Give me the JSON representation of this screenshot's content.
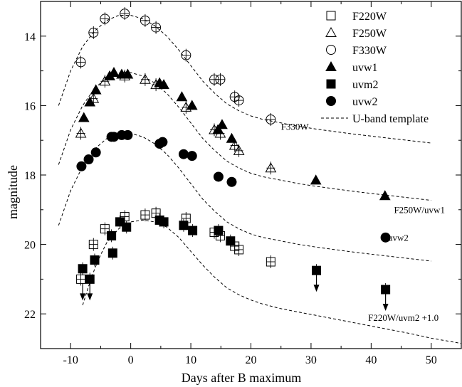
{
  "chart_data": {
    "type": "scatter",
    "xlabel": "Days after B maximum",
    "ylabel": "magnitude",
    "xlim": [
      -15,
      55
    ],
    "ylim": [
      23,
      13
    ],
    "y_inverted": true,
    "xticks": [
      -10,
      0,
      10,
      20,
      30,
      40,
      50
    ],
    "xtick_labels": [
      "-10",
      "0",
      "10",
      "20",
      "30",
      "40",
      "50"
    ],
    "yticks": [
      14,
      16,
      18,
      20,
      22
    ],
    "ytick_labels": [
      "14",
      "16",
      "18",
      "20",
      "22"
    ],
    "legend_position": "top-right",
    "series": [
      {
        "name": "F220W",
        "marker": "square-open",
        "errorbars": true,
        "points": [
          [
            -8.3,
            21.0
          ],
          [
            -6.2,
            20.0
          ],
          [
            -4.3,
            19.55
          ],
          [
            -1.0,
            19.2
          ],
          [
            2.4,
            19.15
          ],
          [
            4.2,
            19.1
          ],
          [
            9.2,
            19.25
          ],
          [
            13.9,
            19.65
          ],
          [
            14.9,
            19.75
          ],
          [
            17.3,
            20.05
          ],
          [
            18.0,
            20.15
          ],
          [
            23.3,
            20.5
          ]
        ]
      },
      {
        "name": "F250W",
        "marker": "triangle-open",
        "errorbars": true,
        "points": [
          [
            -8.3,
            16.8
          ],
          [
            -6.2,
            15.8
          ],
          [
            -4.3,
            15.3
          ],
          [
            -1.0,
            15.15
          ],
          [
            2.4,
            15.25
          ],
          [
            4.2,
            15.4
          ],
          [
            9.2,
            16.05
          ],
          [
            13.9,
            16.7
          ],
          [
            14.9,
            16.8
          ],
          [
            17.3,
            17.15
          ],
          [
            18.0,
            17.3
          ],
          [
            23.3,
            17.8
          ]
        ]
      },
      {
        "name": "F330W",
        "marker": "circle-open",
        "errorbars": true,
        "points": [
          [
            -8.3,
            14.75
          ],
          [
            -6.2,
            13.9
          ],
          [
            -4.3,
            13.5
          ],
          [
            -1.0,
            13.35
          ],
          [
            2.4,
            13.55
          ],
          [
            4.2,
            13.75
          ],
          [
            9.2,
            14.55
          ],
          [
            13.9,
            15.25
          ],
          [
            14.9,
            15.25
          ],
          [
            17.3,
            15.75
          ],
          [
            18.0,
            15.85
          ],
          [
            23.3,
            16.4
          ]
        ]
      },
      {
        "name": "uvw1",
        "marker": "triangle-filled",
        "errorbars": false,
        "points": [
          [
            -7.8,
            16.35
          ],
          [
            -6.8,
            15.9
          ],
          [
            -5.8,
            15.55
          ],
          [
            -3.5,
            15.15
          ],
          [
            -2.8,
            15.05
          ],
          [
            -1.5,
            15.1
          ],
          [
            -0.5,
            15.1
          ],
          [
            4.8,
            15.35
          ],
          [
            5.5,
            15.4
          ],
          [
            8.5,
            15.75
          ],
          [
            10.2,
            16.0
          ],
          [
            14.5,
            16.7
          ],
          [
            15.2,
            16.55
          ],
          [
            16.8,
            16.95
          ],
          [
            30.8,
            18.15
          ],
          [
            42.3,
            18.6
          ]
        ]
      },
      {
        "name": "uvm2",
        "marker": "square-filled",
        "errorbars": true,
        "points": [
          [
            -8.0,
            20.7
          ],
          [
            -6.8,
            21.0
          ],
          [
            -6.0,
            20.45
          ],
          [
            -3.2,
            19.75
          ],
          [
            -3.0,
            20.25
          ],
          [
            -1.8,
            19.35
          ],
          [
            -0.7,
            19.5
          ],
          [
            4.8,
            19.3
          ],
          [
            5.5,
            19.35
          ],
          [
            8.8,
            19.45
          ],
          [
            10.3,
            19.6
          ],
          [
            14.6,
            19.6
          ],
          [
            16.6,
            19.9
          ],
          [
            30.9,
            20.75
          ],
          [
            42.4,
            21.3
          ]
        ],
        "upper_limits": [
          [
            -8.0,
            21.0
          ],
          [
            -6.8,
            21.0
          ],
          [
            30.9,
            20.75
          ],
          [
            42.4,
            21.3
          ]
        ]
      },
      {
        "name": "uvw2",
        "marker": "circle-filled",
        "errorbars": false,
        "points": [
          [
            -8.2,
            17.75
          ],
          [
            -7.0,
            17.55
          ],
          [
            -5.8,
            17.35
          ],
          [
            -3.2,
            16.9
          ],
          [
            -2.8,
            16.9
          ],
          [
            -1.5,
            16.85
          ],
          [
            -0.5,
            16.85
          ],
          [
            4.8,
            17.1
          ],
          [
            5.3,
            17.05
          ],
          [
            8.8,
            17.4
          ],
          [
            10.2,
            17.45
          ],
          [
            14.6,
            18.05
          ],
          [
            16.8,
            18.2
          ],
          [
            42.4,
            19.8
          ]
        ]
      }
    ],
    "template_legend": "U-band template",
    "templates": [
      {
        "label": "F330W",
        "x": [
          -12,
          -10,
          -8,
          -6,
          -4,
          -2,
          0,
          2,
          4,
          6,
          8,
          10,
          12,
          14,
          16,
          18,
          20,
          22,
          25,
          28,
          31,
          34,
          37,
          40,
          43,
          46,
          50
        ],
        "y": [
          16.0,
          15.0,
          14.3,
          13.85,
          13.55,
          13.4,
          13.4,
          13.5,
          13.7,
          14.0,
          14.4,
          14.85,
          15.3,
          15.65,
          15.95,
          16.15,
          16.3,
          16.4,
          16.5,
          16.6,
          16.68,
          16.75,
          16.82,
          16.88,
          16.94,
          17.0,
          17.08
        ]
      },
      {
        "label": "F250W/uvw1",
        "x": [
          -12,
          -10,
          -8,
          -6,
          -4,
          -2,
          0,
          2,
          4,
          6,
          8,
          10,
          12,
          14,
          16,
          18,
          20,
          22,
          25,
          28,
          31,
          34,
          37,
          40,
          43,
          46,
          50
        ],
        "y": [
          17.7,
          16.7,
          16.0,
          15.5,
          15.2,
          15.05,
          15.05,
          15.15,
          15.35,
          15.65,
          16.05,
          16.5,
          16.95,
          17.3,
          17.6,
          17.8,
          17.95,
          18.05,
          18.15,
          18.25,
          18.33,
          18.4,
          18.47,
          18.53,
          18.59,
          18.65,
          18.73
        ]
      },
      {
        "label": "uvw2",
        "x": [
          -12,
          -10,
          -8,
          -6,
          -4,
          -2,
          0,
          2,
          4,
          6,
          8,
          10,
          12,
          14,
          16,
          18,
          20,
          22,
          25,
          28,
          31,
          34,
          37,
          40,
          43,
          46,
          50
        ],
        "y": [
          19.45,
          18.45,
          17.75,
          17.25,
          16.95,
          16.8,
          16.8,
          16.9,
          17.1,
          17.4,
          17.8,
          18.25,
          18.7,
          19.05,
          19.35,
          19.55,
          19.7,
          19.8,
          19.9,
          20.0,
          20.08,
          20.15,
          20.22,
          20.28,
          20.34,
          20.4,
          20.48
        ]
      },
      {
        "label": "F220W/uvm2 +1.0",
        "x": [
          -8,
          -7,
          -6,
          -5,
          -4,
          -2,
          0,
          2,
          4,
          6,
          8,
          10,
          12,
          14,
          16,
          18,
          20,
          22,
          25,
          28,
          31,
          34,
          37,
          40,
          43,
          46,
          50,
          55
        ],
        "y": [
          21.75,
          21.2,
          20.7,
          20.3,
          19.95,
          19.55,
          19.35,
          19.3,
          19.35,
          19.5,
          19.8,
          20.2,
          20.6,
          20.95,
          21.25,
          21.45,
          21.6,
          21.72,
          21.85,
          21.95,
          22.05,
          22.15,
          22.25,
          22.35,
          22.45,
          22.55,
          22.7,
          22.85
        ]
      }
    ],
    "annotations": [
      {
        "text": "F330W",
        "x": 25.0,
        "y": 16.7
      },
      {
        "text": "F250W/uvw1",
        "x": 43.8,
        "y": 19.1
      },
      {
        "text": "uvw2",
        "x": 42.8,
        "y": 19.9
      },
      {
        "text": "F220W/uvm2 +1.0",
        "x": 39.5,
        "y": 22.2
      }
    ]
  }
}
